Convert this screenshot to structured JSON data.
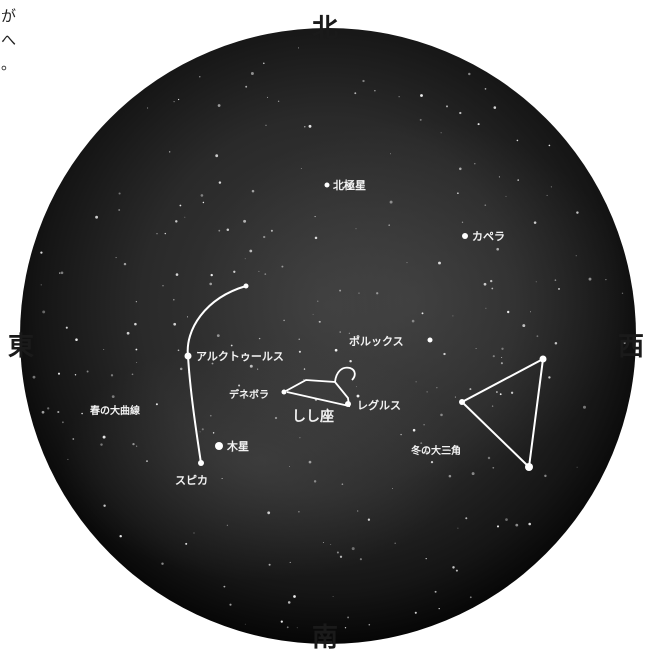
{
  "side_text": [
    "が",
    "へ",
    "。"
  ],
  "directions": {
    "north": "北",
    "south": "南",
    "east": "東",
    "west": "西"
  },
  "labels": {
    "polaris": "北極星",
    "capella": "カペラ",
    "pollux": "ポルックス",
    "arcturus": "アルクトゥールス",
    "spring_curve": "春の大曲線",
    "denebola": "デネボラ",
    "leo": "しし座",
    "regulus": "レグルス",
    "winter_triangle": "冬の大三角",
    "jupiter": "木星",
    "spica": "スピカ"
  },
  "colors": {
    "sky": "#1c1c1c",
    "rim": "#0a0a0a",
    "lines": "#ffffff",
    "text": "#f2f2f2"
  }
}
